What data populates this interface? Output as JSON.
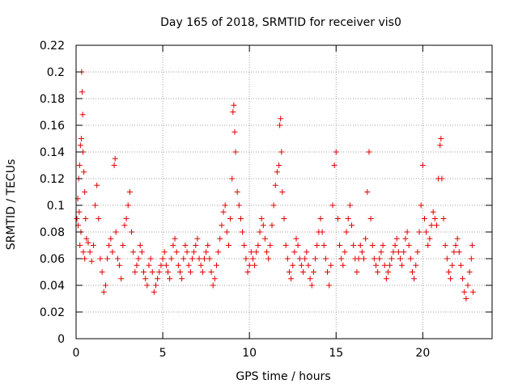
{
  "chart_data": {
    "type": "scatter",
    "title": "Day 165 of 2018, SRMTID for receiver vis0",
    "xlabel": "GPS time / hours",
    "ylabel": "SRMTID / TECUs",
    "xlim": [
      0,
      24
    ],
    "ylim": [
      0,
      0.22
    ],
    "xticks": [
      0,
      5,
      10,
      15,
      20
    ],
    "yticks": [
      0,
      0.02,
      0.04,
      0.06,
      0.08,
      0.1,
      0.12,
      0.14,
      0.16,
      0.18,
      0.2,
      0.22
    ],
    "xtick_labels": [
      "0",
      "5",
      "10",
      "15",
      "20"
    ],
    "ytick_labels": [
      "0",
      "0.02",
      "0.04",
      "0.06",
      "0.08",
      "0.1",
      "0.12",
      "0.14",
      "0.16",
      "0.18",
      "0.2",
      "0.22"
    ],
    "grid": true,
    "marker": "+",
    "color": "#e00000",
    "points": [
      [
        0.05,
        0.09
      ],
      [
        0.1,
        0.105
      ],
      [
        0.15,
        0.12
      ],
      [
        0.2,
        0.13
      ],
      [
        0.25,
        0.145
      ],
      [
        0.3,
        0.15
      ],
      [
        0.32,
        0.2
      ],
      [
        0.35,
        0.185
      ],
      [
        0.38,
        0.168
      ],
      [
        0.4,
        0.14
      ],
      [
        0.45,
        0.125
      ],
      [
        0.5,
        0.11
      ],
      [
        0.55,
        0.09
      ],
      [
        0.6,
        0.075
      ],
      [
        0.12,
        0.085
      ],
      [
        0.18,
        0.095
      ],
      [
        0.22,
        0.07
      ],
      [
        0.28,
        0.08
      ],
      [
        0.42,
        0.065
      ],
      [
        0.5,
        0.06
      ],
      [
        0.7,
        0.072
      ],
      [
        0.8,
        0.065
      ],
      [
        0.9,
        0.058
      ],
      [
        1.0,
        0.07
      ],
      [
        1.1,
        0.1
      ],
      [
        1.2,
        0.115
      ],
      [
        1.3,
        0.09
      ],
      [
        1.4,
        0.06
      ],
      [
        1.5,
        0.05
      ],
      [
        1.6,
        0.035
      ],
      [
        1.7,
        0.04
      ],
      [
        1.8,
        0.06
      ],
      [
        1.9,
        0.07
      ],
      [
        2.0,
        0.075
      ],
      [
        2.1,
        0.065
      ],
      [
        2.2,
        0.13
      ],
      [
        2.25,
        0.135
      ],
      [
        2.3,
        0.08
      ],
      [
        2.4,
        0.06
      ],
      [
        2.5,
        0.055
      ],
      [
        2.6,
        0.045
      ],
      [
        2.7,
        0.07
      ],
      [
        2.8,
        0.085
      ],
      [
        2.9,
        0.09
      ],
      [
        3.0,
        0.1
      ],
      [
        3.1,
        0.11
      ],
      [
        3.2,
        0.08
      ],
      [
        3.3,
        0.065
      ],
      [
        3.4,
        0.05
      ],
      [
        3.5,
        0.055
      ],
      [
        3.6,
        0.06
      ],
      [
        3.7,
        0.07
      ],
      [
        3.8,
        0.065
      ],
      [
        3.9,
        0.05
      ],
      [
        4.0,
        0.045
      ],
      [
        4.1,
        0.04
      ],
      [
        4.2,
        0.055
      ],
      [
        4.3,
        0.06
      ],
      [
        4.4,
        0.05
      ],
      [
        4.5,
        0.035
      ],
      [
        4.6,
        0.04
      ],
      [
        4.7,
        0.045
      ],
      [
        4.8,
        0.05
      ],
      [
        4.9,
        0.055
      ],
      [
        5.0,
        0.06
      ],
      [
        5.1,
        0.065
      ],
      [
        5.2,
        0.055
      ],
      [
        5.3,
        0.05
      ],
      [
        5.4,
        0.045
      ],
      [
        5.5,
        0.06
      ],
      [
        5.6,
        0.07
      ],
      [
        5.7,
        0.075
      ],
      [
        5.8,
        0.065
      ],
      [
        5.9,
        0.055
      ],
      [
        6.0,
        0.05
      ],
      [
        6.1,
        0.045
      ],
      [
        6.2,
        0.06
      ],
      [
        6.3,
        0.07
      ],
      [
        6.4,
        0.065
      ],
      [
        6.5,
        0.055
      ],
      [
        6.6,
        0.05
      ],
      [
        6.7,
        0.06
      ],
      [
        6.8,
        0.065
      ],
      [
        6.9,
        0.07
      ],
      [
        7.0,
        0.075
      ],
      [
        7.1,
        0.06
      ],
      [
        7.2,
        0.055
      ],
      [
        7.3,
        0.05
      ],
      [
        7.4,
        0.06
      ],
      [
        7.5,
        0.065
      ],
      [
        7.6,
        0.07
      ],
      [
        7.7,
        0.06
      ],
      [
        7.8,
        0.05
      ],
      [
        7.9,
        0.04
      ],
      [
        8.0,
        0.045
      ],
      [
        8.1,
        0.055
      ],
      [
        8.2,
        0.065
      ],
      [
        8.3,
        0.075
      ],
      [
        8.4,
        0.085
      ],
      [
        8.5,
        0.095
      ],
      [
        8.6,
        0.1
      ],
      [
        8.7,
        0.08
      ],
      [
        8.8,
        0.07
      ],
      [
        8.9,
        0.09
      ],
      [
        9.0,
        0.12
      ],
      [
        9.05,
        0.17
      ],
      [
        9.1,
        0.175
      ],
      [
        9.15,
        0.155
      ],
      [
        9.2,
        0.14
      ],
      [
        9.3,
        0.11
      ],
      [
        9.4,
        0.1
      ],
      [
        9.5,
        0.09
      ],
      [
        9.6,
        0.08
      ],
      [
        9.7,
        0.07
      ],
      [
        9.8,
        0.06
      ],
      [
        9.9,
        0.05
      ],
      [
        10.0,
        0.055
      ],
      [
        10.1,
        0.065
      ],
      [
        10.2,
        0.06
      ],
      [
        10.3,
        0.055
      ],
      [
        10.4,
        0.065
      ],
      [
        10.5,
        0.07
      ],
      [
        10.6,
        0.08
      ],
      [
        10.7,
        0.09
      ],
      [
        10.8,
        0.085
      ],
      [
        10.9,
        0.075
      ],
      [
        11.0,
        0.065
      ],
      [
        11.1,
        0.06
      ],
      [
        11.2,
        0.07
      ],
      [
        11.3,
        0.085
      ],
      [
        11.4,
        0.1
      ],
      [
        11.5,
        0.115
      ],
      [
        11.6,
        0.125
      ],
      [
        11.7,
        0.13
      ],
      [
        11.75,
        0.16
      ],
      [
        11.8,
        0.165
      ],
      [
        11.85,
        0.14
      ],
      [
        11.9,
        0.11
      ],
      [
        12.0,
        0.09
      ],
      [
        12.1,
        0.07
      ],
      [
        12.2,
        0.06
      ],
      [
        12.3,
        0.05
      ],
      [
        12.4,
        0.045
      ],
      [
        12.5,
        0.055
      ],
      [
        12.6,
        0.065
      ],
      [
        12.7,
        0.075
      ],
      [
        12.8,
        0.07
      ],
      [
        12.9,
        0.06
      ],
      [
        13.0,
        0.055
      ],
      [
        13.1,
        0.05
      ],
      [
        13.2,
        0.06
      ],
      [
        13.3,
        0.065
      ],
      [
        13.4,
        0.055
      ],
      [
        13.5,
        0.045
      ],
      [
        13.6,
        0.04
      ],
      [
        13.7,
        0.05
      ],
      [
        13.8,
        0.06
      ],
      [
        13.9,
        0.07
      ],
      [
        14.0,
        0.08
      ],
      [
        14.1,
        0.09
      ],
      [
        14.2,
        0.08
      ],
      [
        14.3,
        0.07
      ],
      [
        14.4,
        0.06
      ],
      [
        14.5,
        0.05
      ],
      [
        14.6,
        0.04
      ],
      [
        14.7,
        0.055
      ],
      [
        14.8,
        0.1
      ],
      [
        14.9,
        0.13
      ],
      [
        15.0,
        0.14
      ],
      [
        15.1,
        0.09
      ],
      [
        15.2,
        0.07
      ],
      [
        15.3,
        0.06
      ],
      [
        15.4,
        0.055
      ],
      [
        15.5,
        0.065
      ],
      [
        15.6,
        0.08
      ],
      [
        15.7,
        0.09
      ],
      [
        15.8,
        0.1
      ],
      [
        15.9,
        0.085
      ],
      [
        16.0,
        0.07
      ],
      [
        16.1,
        0.06
      ],
      [
        16.2,
        0.05
      ],
      [
        16.3,
        0.06
      ],
      [
        16.4,
        0.07
      ],
      [
        16.5,
        0.065
      ],
      [
        16.6,
        0.06
      ],
      [
        16.7,
        0.075
      ],
      [
        16.8,
        0.11
      ],
      [
        16.9,
        0.14
      ],
      [
        17.0,
        0.09
      ],
      [
        17.1,
        0.07
      ],
      [
        17.2,
        0.06
      ],
      [
        17.3,
        0.055
      ],
      [
        17.4,
        0.05
      ],
      [
        17.5,
        0.06
      ],
      [
        17.6,
        0.065
      ],
      [
        17.7,
        0.07
      ],
      [
        17.8,
        0.055
      ],
      [
        17.9,
        0.045
      ],
      [
        18.0,
        0.05
      ],
      [
        18.1,
        0.055
      ],
      [
        18.2,
        0.06
      ],
      [
        18.3,
        0.065
      ],
      [
        18.4,
        0.07
      ],
      [
        18.5,
        0.075
      ],
      [
        18.6,
        0.065
      ],
      [
        18.7,
        0.06
      ],
      [
        18.8,
        0.055
      ],
      [
        18.9,
        0.065
      ],
      [
        19.0,
        0.075
      ],
      [
        19.1,
        0.08
      ],
      [
        19.2,
        0.07
      ],
      [
        19.3,
        0.06
      ],
      [
        19.4,
        0.05
      ],
      [
        19.5,
        0.045
      ],
      [
        19.6,
        0.055
      ],
      [
        19.7,
        0.065
      ],
      [
        19.8,
        0.08
      ],
      [
        19.9,
        0.1
      ],
      [
        20.0,
        0.13
      ],
      [
        20.1,
        0.09
      ],
      [
        20.2,
        0.08
      ],
      [
        20.3,
        0.07
      ],
      [
        20.4,
        0.075
      ],
      [
        20.5,
        0.085
      ],
      [
        20.6,
        0.095
      ],
      [
        20.7,
        0.09
      ],
      [
        20.8,
        0.085
      ],
      [
        20.9,
        0.12
      ],
      [
        21.0,
        0.145
      ],
      [
        21.05,
        0.15
      ],
      [
        21.1,
        0.12
      ],
      [
        21.2,
        0.09
      ],
      [
        21.3,
        0.07
      ],
      [
        21.4,
        0.06
      ],
      [
        21.5,
        0.05
      ],
      [
        21.6,
        0.045
      ],
      [
        21.7,
        0.055
      ],
      [
        21.8,
        0.065
      ],
      [
        21.9,
        0.07
      ],
      [
        22.0,
        0.075
      ],
      [
        22.1,
        0.065
      ],
      [
        22.2,
        0.055
      ],
      [
        22.3,
        0.045
      ],
      [
        22.4,
        0.035
      ],
      [
        22.5,
        0.03
      ],
      [
        22.6,
        0.04
      ],
      [
        22.7,
        0.05
      ],
      [
        22.8,
        0.06
      ],
      [
        22.85,
        0.07
      ],
      [
        22.9,
        0.035
      ]
    ]
  }
}
